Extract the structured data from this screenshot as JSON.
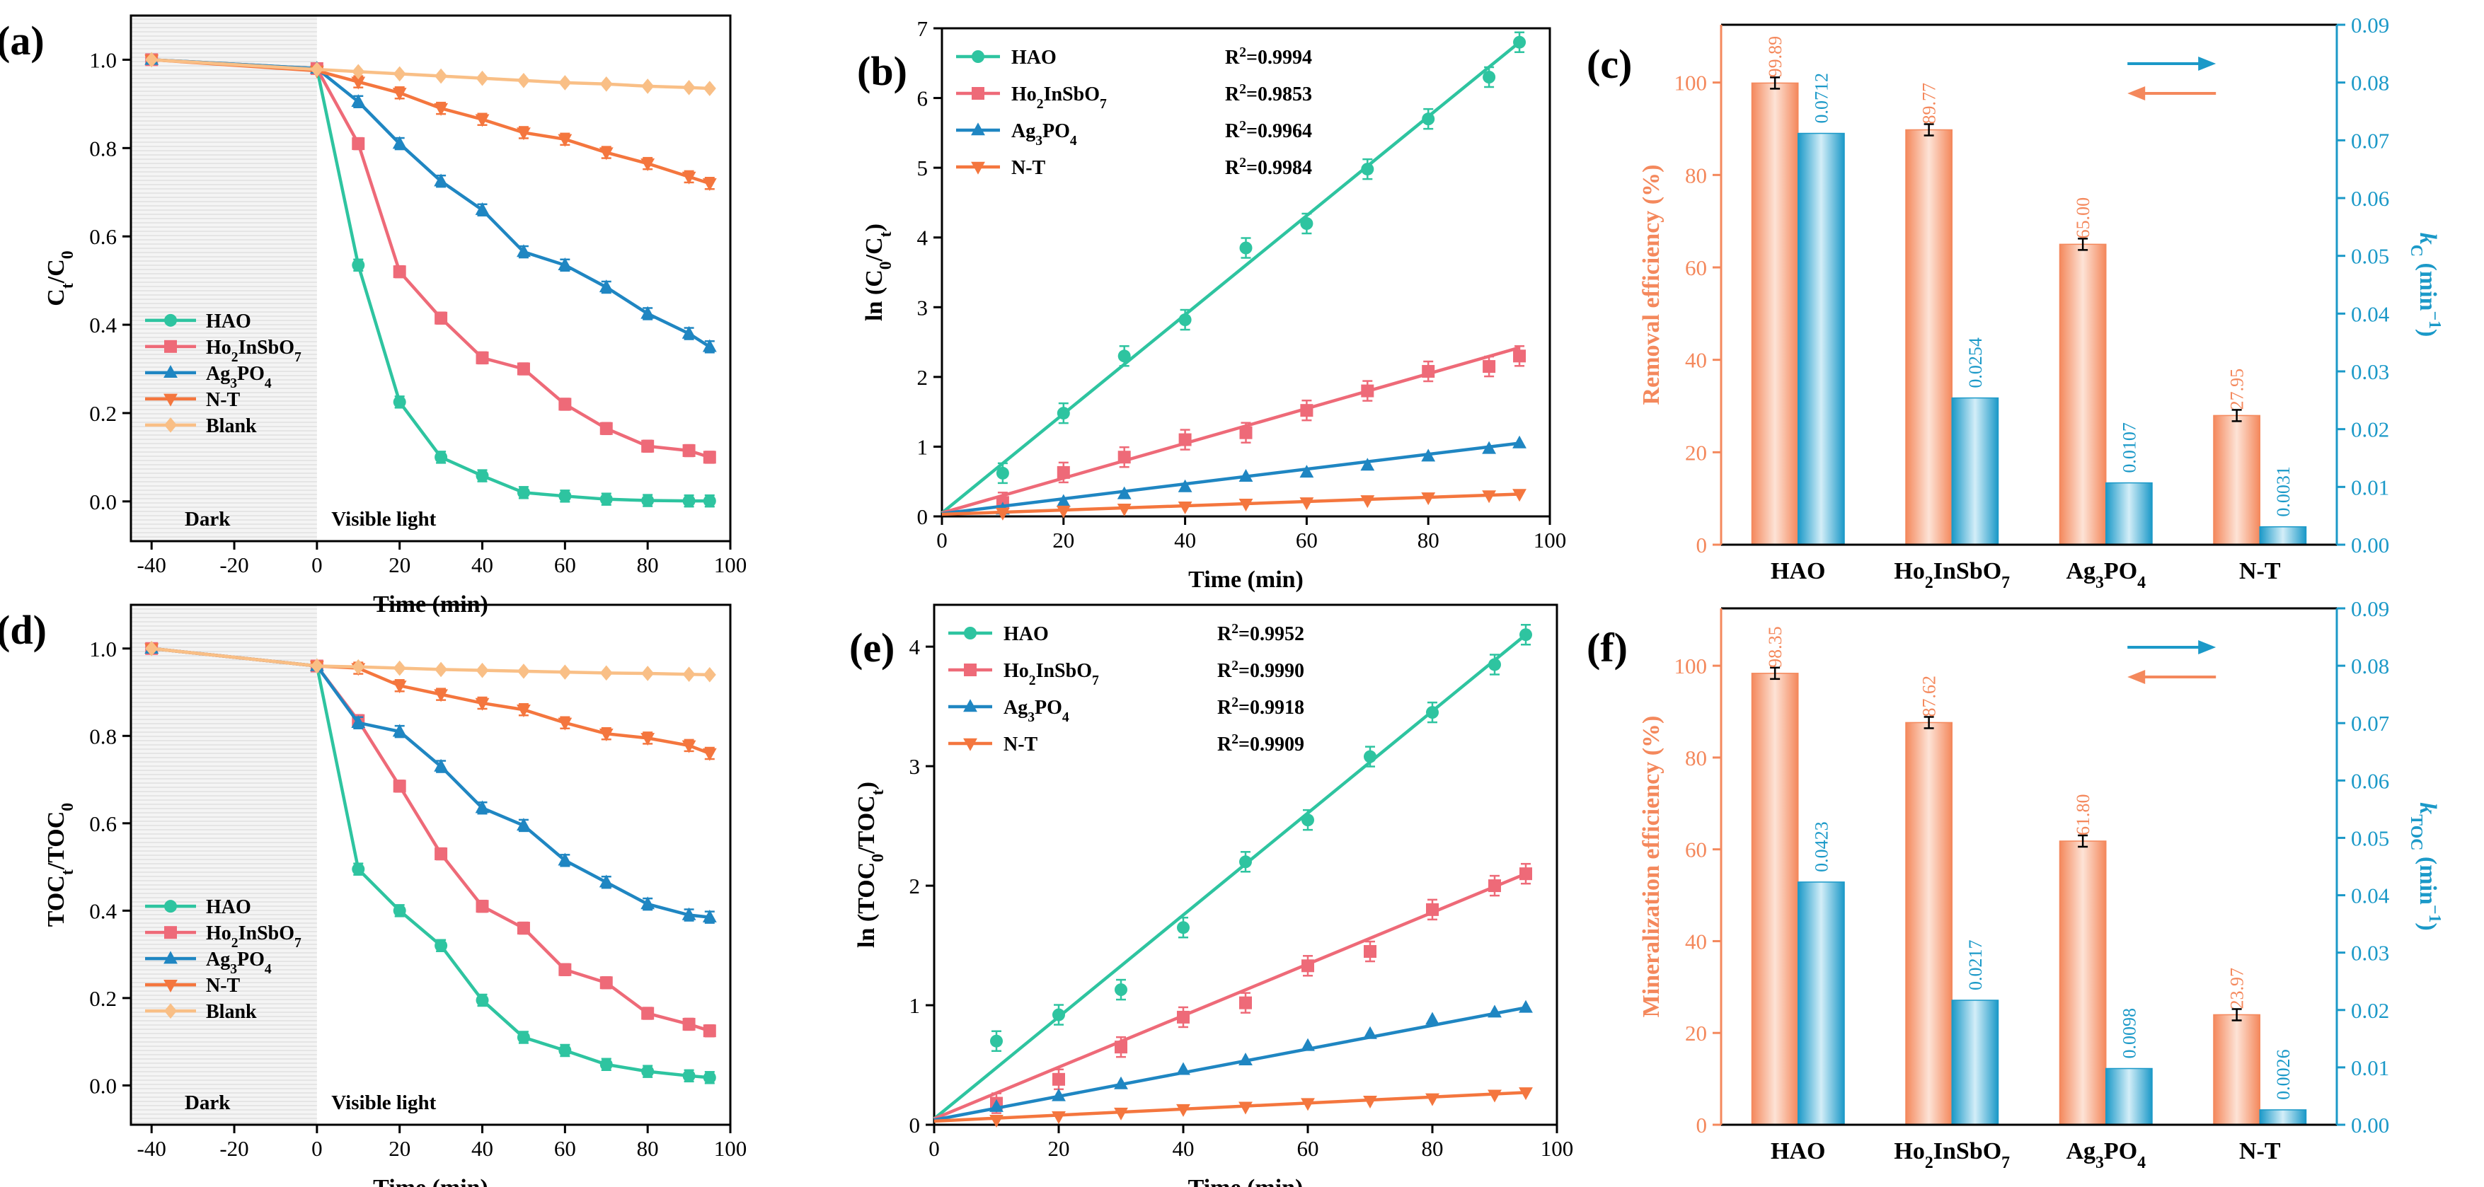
{
  "colors": {
    "HAO": "#2ec4a0",
    "Ho2InSbO7": "#ee6a78",
    "Ag3PO4": "#1f86c2",
    "NT": "#f4763e",
    "Blank": "#f9bf86",
    "removal": "#f4885c",
    "rate": "#1b99c8"
  },
  "chart_data": [
    {
      "panel": "(a)",
      "type": "line",
      "xlabel": "Time (min)",
      "ylabel": "Ct/C0",
      "xlim": [
        -45,
        100
      ],
      "ylim": [
        -0.09,
        1.1
      ],
      "xticks": [
        "-40",
        "-20",
        "0",
        "20",
        "40",
        "60",
        "80",
        "100"
      ],
      "yticks": [
        "0.0",
        "0.2",
        "0.4",
        "0.6",
        "0.8",
        "1.0"
      ],
      "annotations": [
        "Dark",
        "Visible light"
      ],
      "x": [
        -40,
        0,
        10,
        20,
        30,
        40,
        50,
        60,
        70,
        80,
        90,
        95
      ],
      "series": [
        {
          "name": "HAO",
          "values": [
            1.0,
            0.98,
            0.535,
            0.225,
            0.1,
            0.058,
            0.02,
            0.012,
            0.005,
            0.002,
            0.001,
            0.001
          ]
        },
        {
          "name": "Ho2InSbO7",
          "values": [
            1.0,
            0.98,
            0.81,
            0.52,
            0.415,
            0.325,
            0.3,
            0.22,
            0.165,
            0.125,
            0.115,
            0.1
          ]
        },
        {
          "name": "Ag3PO4",
          "values": [
            1.0,
            0.98,
            0.905,
            0.81,
            0.725,
            0.66,
            0.565,
            0.535,
            0.485,
            0.425,
            0.38,
            0.35
          ]
        },
        {
          "name": "N-T",
          "values": [
            1.0,
            0.975,
            0.95,
            0.925,
            0.89,
            0.865,
            0.835,
            0.82,
            0.79,
            0.765,
            0.735,
            0.72
          ]
        },
        {
          "name": "Blank",
          "values": [
            1.0,
            0.978,
            0.973,
            0.968,
            0.963,
            0.958,
            0.953,
            0.948,
            0.945,
            0.94,
            0.937,
            0.935
          ]
        }
      ]
    },
    {
      "panel": "(b)",
      "type": "scatter",
      "xlabel": "Time (min)",
      "ylabel": "ln (C0/Ct)",
      "xlim": [
        0,
        100
      ],
      "ylim": [
        0,
        7
      ],
      "xticks": [
        "0",
        "20",
        "40",
        "60",
        "80",
        "100"
      ],
      "yticks": [
        "0",
        "1",
        "2",
        "3",
        "4",
        "5",
        "6",
        "7"
      ],
      "x": [
        10,
        20,
        30,
        40,
        50,
        60,
        70,
        80,
        90,
        95
      ],
      "series": [
        {
          "name": "HAO",
          "r2": "R²=0.9994",
          "fit": [
            0.05,
            6.8
          ],
          "values": [
            0.62,
            1.48,
            2.3,
            2.82,
            3.85,
            4.2,
            4.98,
            5.7,
            6.3,
            6.8
          ]
        },
        {
          "name": "Ho2InSbO7",
          "r2": "R²=0.9853",
          "fit": [
            0.05,
            2.42
          ],
          "values": [
            0.2,
            0.63,
            0.85,
            1.1,
            1.2,
            1.52,
            1.8,
            2.08,
            2.15,
            2.3
          ]
        },
        {
          "name": "Ag3PO4",
          "r2": "R²=0.9964",
          "fit": [
            0.04,
            1.05
          ],
          "values": [
            0.1,
            0.21,
            0.32,
            0.42,
            0.57,
            0.63,
            0.73,
            0.86,
            0.97,
            1.05
          ]
        },
        {
          "name": "N-T",
          "r2": "R²=0.9984",
          "fit": [
            0.03,
            0.32
          ],
          "values": [
            0.05,
            0.08,
            0.11,
            0.14,
            0.18,
            0.2,
            0.23,
            0.27,
            0.3,
            0.32
          ]
        }
      ]
    },
    {
      "panel": "(c)",
      "type": "bar",
      "categories": [
        "HAO",
        "Ho2InSbO7",
        "Ag3PO4",
        "N-T"
      ],
      "ylabel": "Removal efficiency (%)",
      "y2label": "kC (min-1)",
      "ylim": [
        0,
        112.5
      ],
      "y2lim": [
        0,
        0.09
      ],
      "yticks": [
        "0",
        "20",
        "40",
        "60",
        "80",
        "100"
      ],
      "y2ticks": [
        "0.00",
        "0.01",
        "0.02",
        "0.03",
        "0.04",
        "0.05",
        "0.06",
        "0.07",
        "0.08",
        "0.09"
      ],
      "series": [
        {
          "name": "Removal efficiency",
          "values": [
            99.89,
            89.77,
            65.0,
            27.95
          ],
          "labels": [
            "99.89",
            "89.77",
            "65.00",
            "27.95"
          ]
        },
        {
          "name": "kC",
          "values": [
            0.0712,
            0.0254,
            0.0107,
            0.0031
          ],
          "labels": [
            "0.0712",
            "0.0254",
            "0.0107",
            "0.0031"
          ]
        }
      ]
    },
    {
      "panel": "(d)",
      "type": "line",
      "xlabel": "Time (min)",
      "ylabel": "TOCt/TOC0",
      "xlim": [
        -45,
        100
      ],
      "ylim": [
        -0.09,
        1.1
      ],
      "xticks": [
        "-40",
        "-20",
        "0",
        "20",
        "40",
        "60",
        "80",
        "100"
      ],
      "yticks": [
        "0.0",
        "0.2",
        "0.4",
        "0.6",
        "0.8",
        "1.0"
      ],
      "annotations": [
        "Dark",
        "Visible light"
      ],
      "x": [
        -40,
        0,
        10,
        20,
        30,
        40,
        50,
        60,
        70,
        80,
        90,
        95
      ],
      "series": [
        {
          "name": "HAO",
          "values": [
            1.0,
            0.96,
            0.495,
            0.4,
            0.32,
            0.195,
            0.11,
            0.08,
            0.048,
            0.032,
            0.022,
            0.018
          ]
        },
        {
          "name": "Ho2InSbO7",
          "values": [
            1.0,
            0.96,
            0.835,
            0.685,
            0.53,
            0.41,
            0.36,
            0.265,
            0.235,
            0.165,
            0.14,
            0.125
          ]
        },
        {
          "name": "Ag3PO4",
          "values": [
            1.0,
            0.96,
            0.83,
            0.81,
            0.73,
            0.635,
            0.595,
            0.515,
            0.465,
            0.415,
            0.39,
            0.385
          ]
        },
        {
          "name": "N-T",
          "values": [
            1.0,
            0.96,
            0.955,
            0.915,
            0.895,
            0.875,
            0.86,
            0.83,
            0.805,
            0.795,
            0.778,
            0.76
          ]
        },
        {
          "name": "Blank",
          "values": [
            1.0,
            0.96,
            0.958,
            0.955,
            0.952,
            0.95,
            0.948,
            0.946,
            0.944,
            0.943,
            0.941,
            0.94
          ]
        }
      ]
    },
    {
      "panel": "(e)",
      "type": "scatter",
      "xlabel": "Time (min)",
      "ylabel": "ln (TOC0/TOCt)",
      "xlim": [
        0,
        100
      ],
      "ylim": [
        0,
        4.35
      ],
      "xticks": [
        "0",
        "20",
        "40",
        "60",
        "80",
        "100"
      ],
      "yticks": [
        "0",
        "1",
        "2",
        "3",
        "4"
      ],
      "x": [
        10,
        20,
        30,
        40,
        50,
        60,
        70,
        80,
        90,
        95
      ],
      "series": [
        {
          "name": "HAO",
          "r2": "R²=0.9952",
          "fit": [
            0.05,
            4.1
          ],
          "values": [
            0.7,
            0.92,
            1.13,
            1.65,
            2.2,
            2.55,
            3.08,
            3.45,
            3.85,
            4.1
          ]
        },
        {
          "name": "Ho2InSbO7",
          "r2": "R²=0.9990",
          "fit": [
            0.05,
            2.1
          ],
          "values": [
            0.18,
            0.38,
            0.65,
            0.9,
            1.02,
            1.33,
            1.45,
            1.8,
            2.0,
            2.1
          ]
        },
        {
          "name": "Ag3PO4",
          "r2": "R²=0.9918",
          "fit": [
            0.04,
            0.98
          ],
          "values": [
            0.15,
            0.24,
            0.34,
            0.46,
            0.54,
            0.66,
            0.76,
            0.88,
            0.94,
            0.98
          ]
        },
        {
          "name": "N-T",
          "r2": "R²=0.9909",
          "fit": [
            0.03,
            0.27
          ],
          "values": [
            0.04,
            0.07,
            0.1,
            0.13,
            0.15,
            0.18,
            0.2,
            0.22,
            0.25,
            0.27
          ]
        }
      ]
    },
    {
      "panel": "(f)",
      "type": "bar",
      "categories": [
        "HAO",
        "Ho2InSbO7",
        "Ag3PO4",
        "N-T"
      ],
      "ylabel": "Mineralization efficiency (%)",
      "y2label": "kTOC (min-1)",
      "ylim": [
        0,
        112.5
      ],
      "y2lim": [
        0,
        0.09
      ],
      "yticks": [
        "0",
        "20",
        "40",
        "60",
        "80",
        "100"
      ],
      "y2ticks": [
        "0.00",
        "0.01",
        "0.02",
        "0.03",
        "0.04",
        "0.05",
        "0.06",
        "0.07",
        "0.08",
        "0.09"
      ],
      "series": [
        {
          "name": "Mineralization efficiency",
          "values": [
            98.35,
            87.62,
            61.8,
            23.97
          ],
          "labels": [
            "98.35",
            "87.62",
            "61.80",
            "23.97"
          ]
        },
        {
          "name": "kTOC",
          "values": [
            0.0423,
            0.0217,
            0.0098,
            0.0026
          ],
          "labels": [
            "0.0423",
            "0.0217",
            "0.0098",
            "0.0026"
          ]
        }
      ]
    }
  ]
}
